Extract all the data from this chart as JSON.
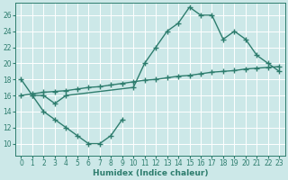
{
  "bg_color": "#cce8e8",
  "grid_color": "#ffffff",
  "line_color": "#2e7d6e",
  "line_width": 1.0,
  "marker": "+",
  "marker_size": 4,
  "marker_edge_width": 1.0,
  "xlabel": "Humidex (Indice chaleur)",
  "xlabel_fontsize": 6.5,
  "xlabel_fontweight": "bold",
  "tick_fontsize": 5.5,
  "xlim": [
    -0.5,
    23.5
  ],
  "ylim": [
    8.5,
    27.5
  ],
  "yticks": [
    10,
    12,
    14,
    16,
    18,
    20,
    22,
    24,
    26
  ],
  "xticks": [
    0,
    1,
    2,
    3,
    4,
    5,
    6,
    7,
    8,
    9,
    10,
    11,
    12,
    13,
    14,
    15,
    16,
    17,
    18,
    19,
    20,
    21,
    22,
    23
  ],
  "line1_x": [
    0,
    1,
    2,
    3,
    4,
    10,
    11,
    12,
    13,
    14,
    15,
    16,
    17,
    18,
    19,
    20,
    21,
    22,
    23
  ],
  "line1_y": [
    18,
    16,
    16,
    15,
    16,
    17,
    20,
    22,
    24,
    25,
    27,
    26,
    26,
    23,
    24,
    23,
    21,
    20,
    19
  ],
  "line2_x": [
    0,
    1,
    2,
    3,
    4,
    5,
    6,
    7,
    8,
    9,
    10,
    11,
    12,
    13,
    14,
    15,
    16,
    17,
    18,
    19,
    20,
    21,
    22,
    23
  ],
  "line2_y": [
    16,
    16.2,
    16.4,
    16.5,
    16.6,
    16.8,
    17.0,
    17.1,
    17.3,
    17.5,
    17.7,
    17.9,
    18.0,
    18.2,
    18.4,
    18.5,
    18.7,
    18.9,
    19.0,
    19.1,
    19.3,
    19.4,
    19.5,
    19.6
  ],
  "line3_x": [
    1,
    2,
    3,
    4,
    5,
    6,
    7,
    8,
    9
  ],
  "line3_y": [
    16,
    14,
    13,
    12,
    11,
    10,
    10,
    11,
    13
  ]
}
